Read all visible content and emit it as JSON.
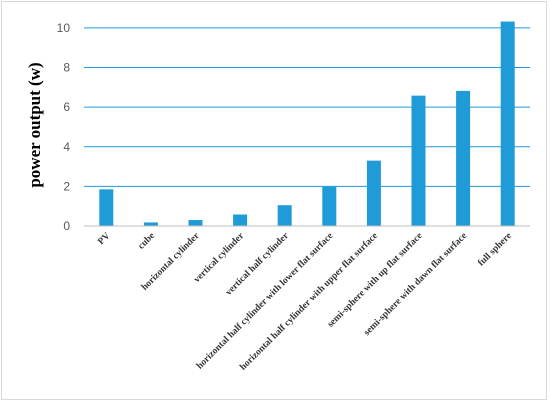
{
  "chart_data": {
    "type": "bar",
    "title": "",
    "xlabel": "",
    "ylabel": "power output  (w)",
    "ylim": [
      0,
      10.6
    ],
    "yticks": [
      0,
      2,
      4,
      6,
      8,
      10
    ],
    "grid": true,
    "legend": "none",
    "bar_color": "#1f9bd7",
    "grid_color": "#1f9bd7",
    "categories": [
      "PV",
      "cube",
      "horizontal cylinder",
      "vertical cylinder",
      "vertical half cylinder",
      "horizontal half cylinder with lower flat surface",
      "horizontal half cylinder with upper flat surface",
      "semi-sphere with up flat surface",
      "semi-sphere with dawn flat surface",
      "full sphere"
    ],
    "values": [
      1.85,
      0.18,
      0.3,
      0.58,
      1.05,
      1.98,
      3.3,
      6.58,
      6.82,
      10.32
    ]
  }
}
